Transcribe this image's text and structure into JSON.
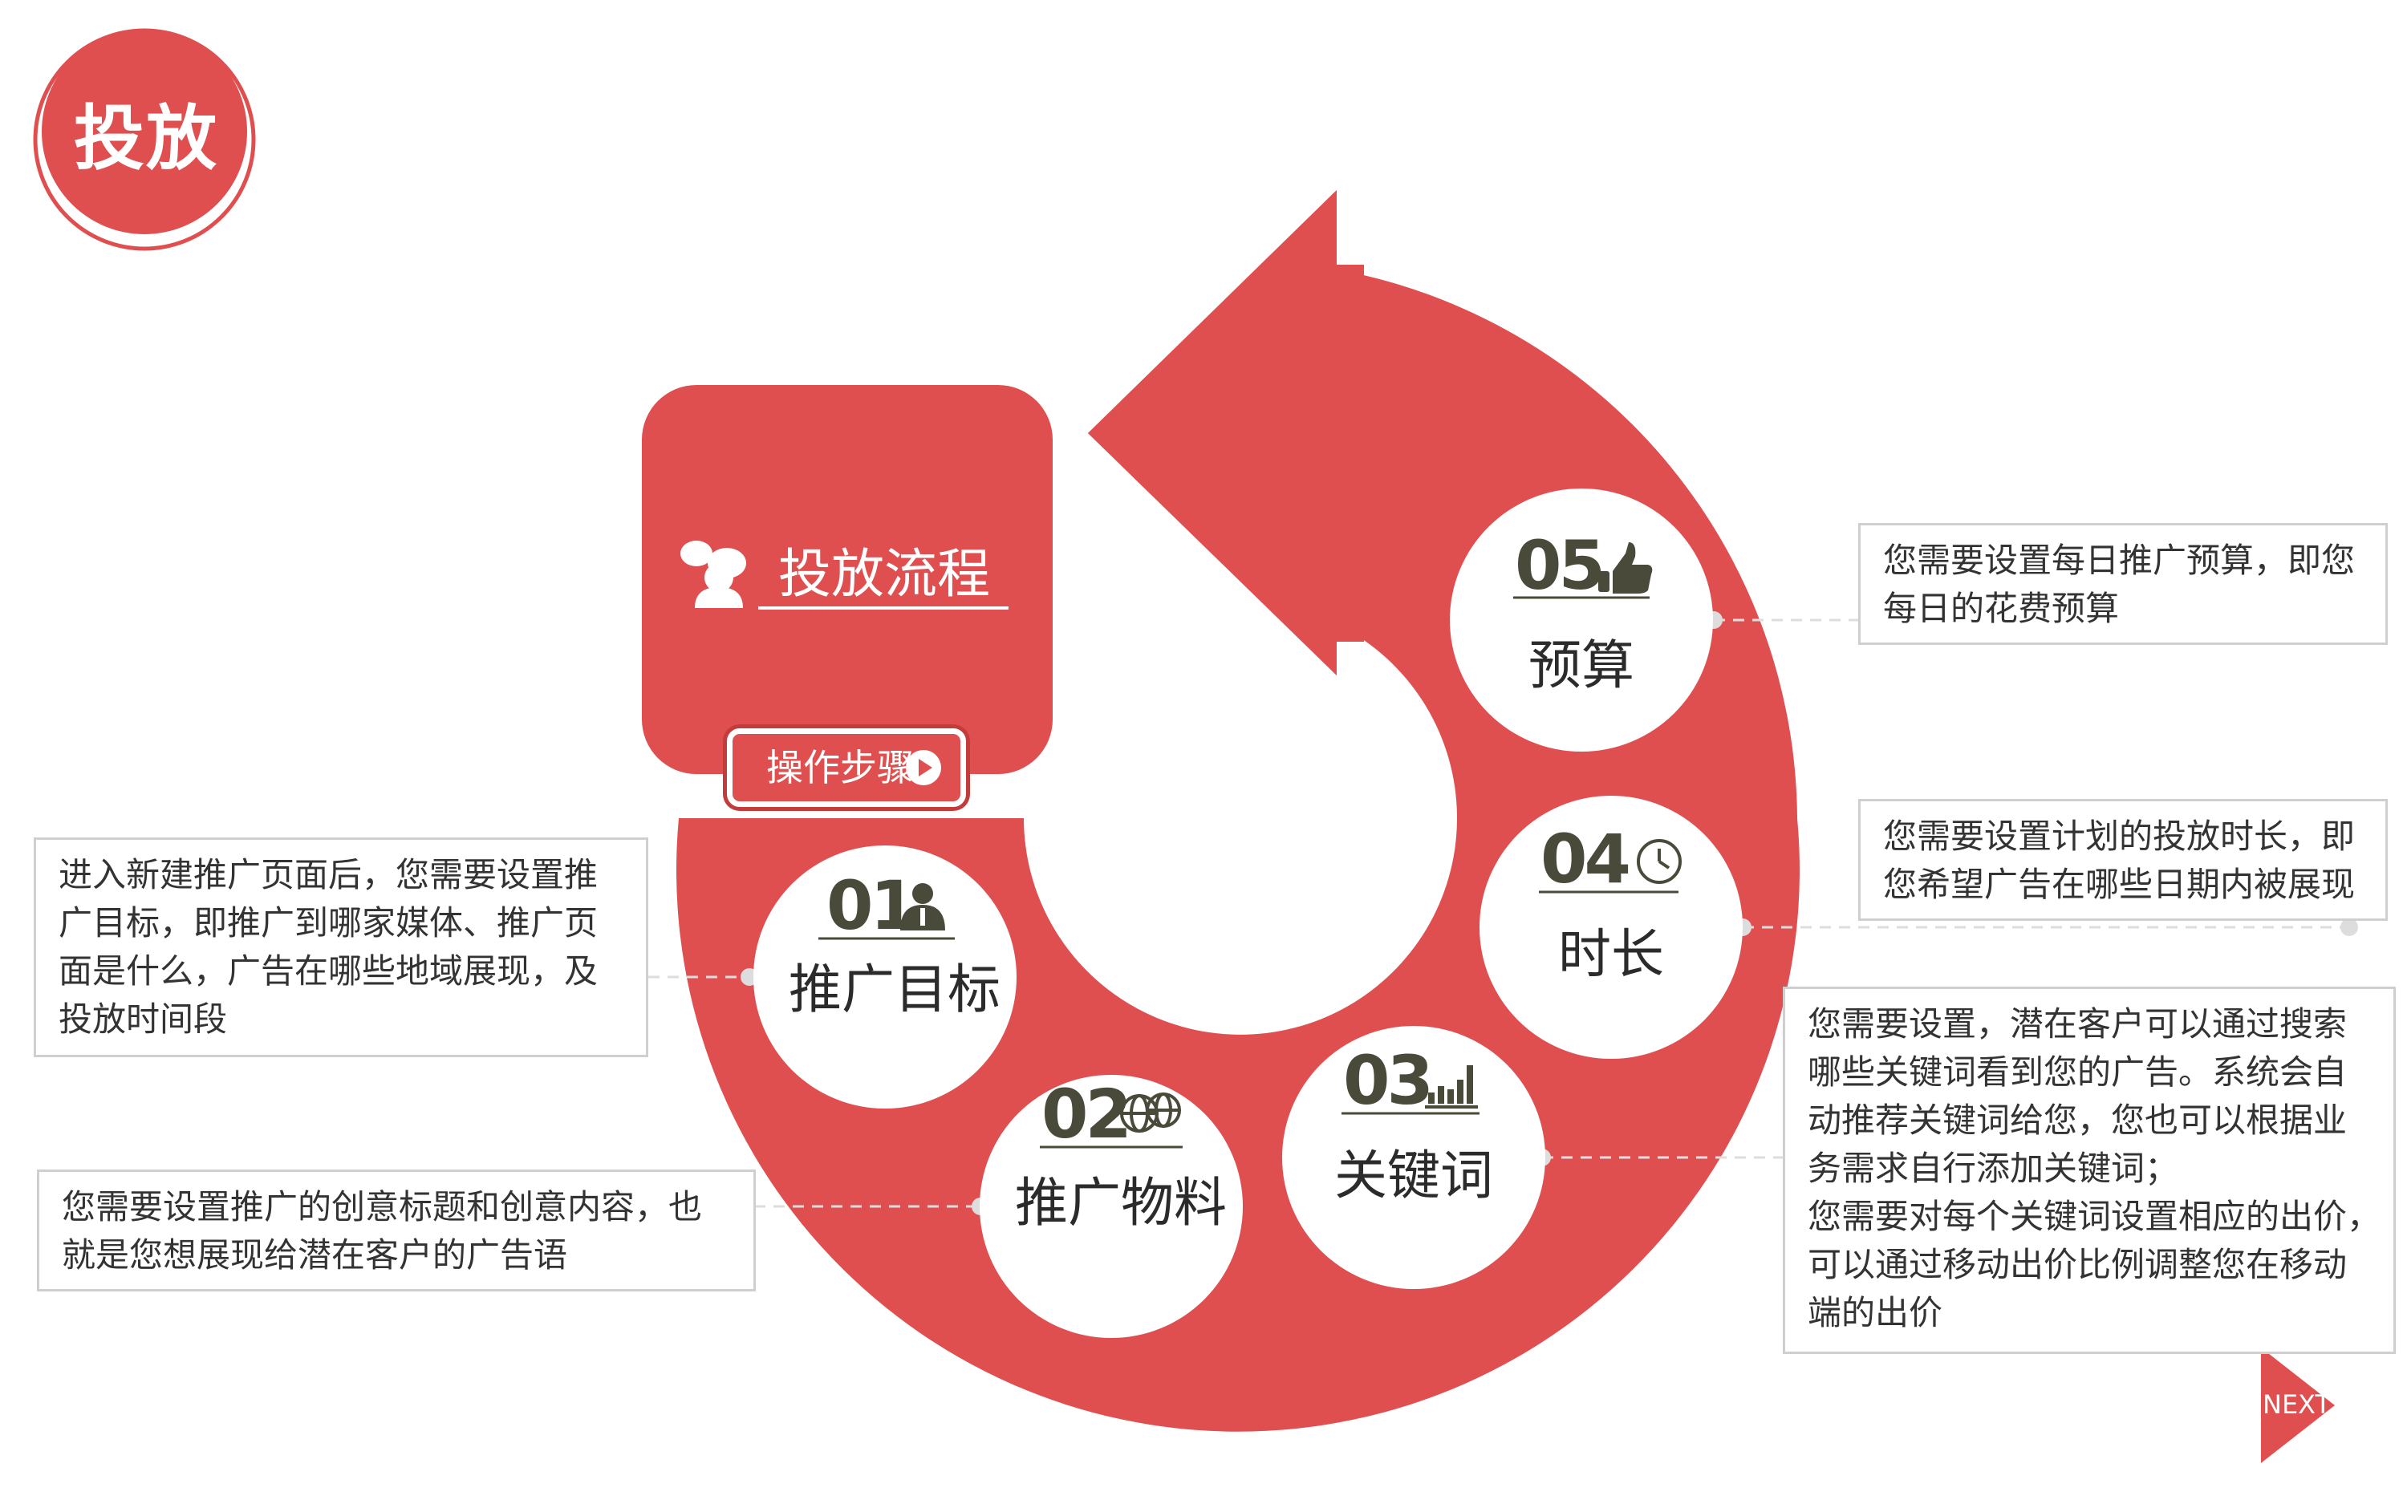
{
  "badge": {
    "label": "投放"
  },
  "process": {
    "title": "投放流程",
    "button_label": "操作步骤"
  },
  "steps": [
    {
      "number": "01",
      "label": "推广目标",
      "icon": "person-icon",
      "description": [
        "进入新建推广页面后，您需要设置推",
        "广目标，即推广到哪家媒体、推广页",
        "面是什么，广告在哪些地域展现，及",
        "投放时间段"
      ]
    },
    {
      "number": "02",
      "label": "推广物料",
      "icon": "globe-icon",
      "description": [
        "您需要设置推广的创意标题和创意内容，也",
        "就是您想展现给潜在客户的广告语"
      ]
    },
    {
      "number": "03",
      "label": "关键词",
      "icon": "bar-chart-icon",
      "description": [
        "您需要设置，潜在客户可以通过搜索",
        "哪些关键词看到您的广告。系统会自",
        "动推荐关键词给您，您也可以根据业",
        "务需求自行添加关键词；",
        "您需要对每个关键词设置相应的出价，",
        "可以通过移动出价比例调整您在移动",
        "端的出价"
      ]
    },
    {
      "number": "04",
      "label": "时长",
      "icon": "clock-icon",
      "description": [
        "您需要设置计划的投放时长，即",
        "您希望广告在哪些日期内被展现"
      ]
    },
    {
      "number": "05",
      "label": "预算",
      "icon": "thumbs-up-icon",
      "description": [
        "您需要设置每日推广预算，即您",
        "每日的花费预算"
      ]
    }
  ],
  "next": {
    "label": "NEXT"
  },
  "colors": {
    "accent": "#e04f4f",
    "dark_text": "#4a4a3a",
    "box_border": "#cfcfcf"
  }
}
